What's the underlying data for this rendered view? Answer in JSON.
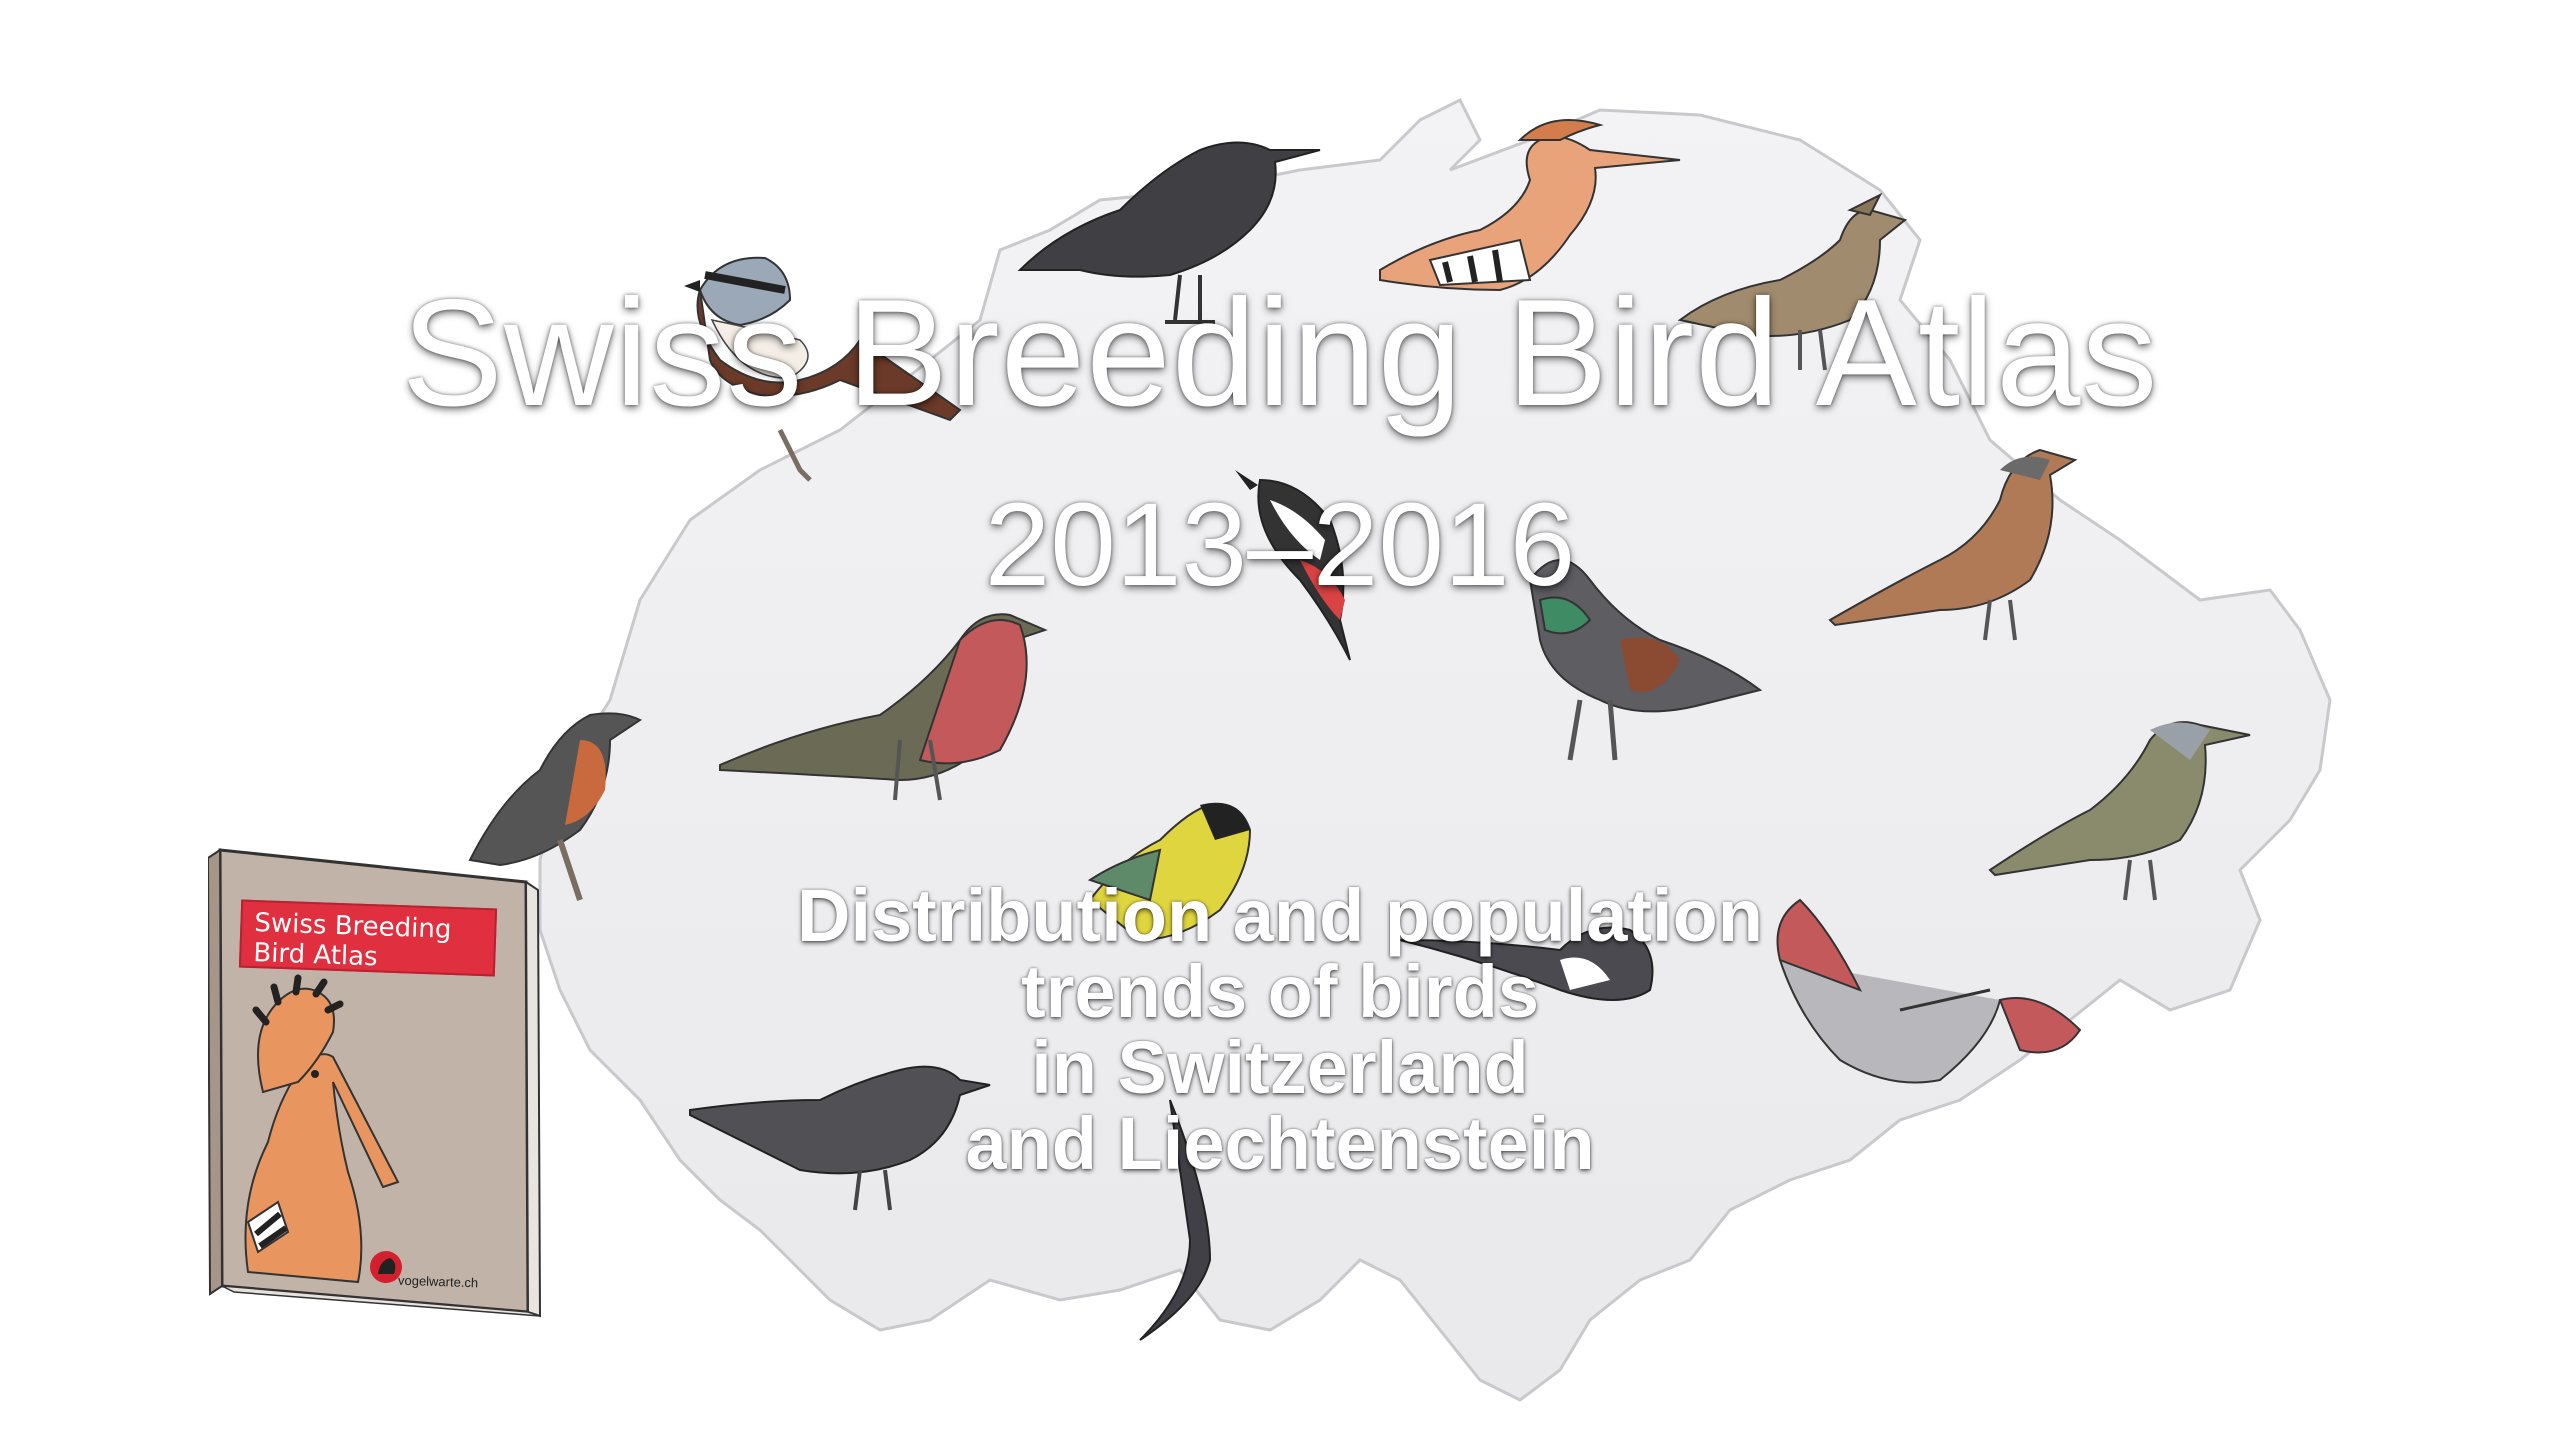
{
  "title": "Swiss Breeding Bird Atlas",
  "years": "2013–2016",
  "subtitle_lines": [
    "Distribution and population",
    "trends of birds",
    "in Switzerland",
    "and Liechtenstein"
  ],
  "book": {
    "cover_title_lines": [
      "Swiss Breeding",
      "Bird Atlas"
    ],
    "publisher": "vogelwarte.ch"
  },
  "colors": {
    "map_fill": "#efeff1",
    "map_stroke": "#c9c9cd",
    "text": "#ffffff",
    "book_label": "#e0303f",
    "book_cover": "#c2b3a8"
  },
  "illustrations": [
    "red-backed-shrike-icon",
    "carrion-crow-icon",
    "hoopoe-icon",
    "crested-lark-icon",
    "great-spotted-woodpecker-icon",
    "black-grouse-icon",
    "house-sparrow-icon",
    "chaffinch-icon",
    "whinchat-icon",
    "great-tit-icon",
    "rock-bunting-icon",
    "wallcreeper-icon",
    "blackbird-icon",
    "swift-icon",
    "magpie-icon"
  ]
}
